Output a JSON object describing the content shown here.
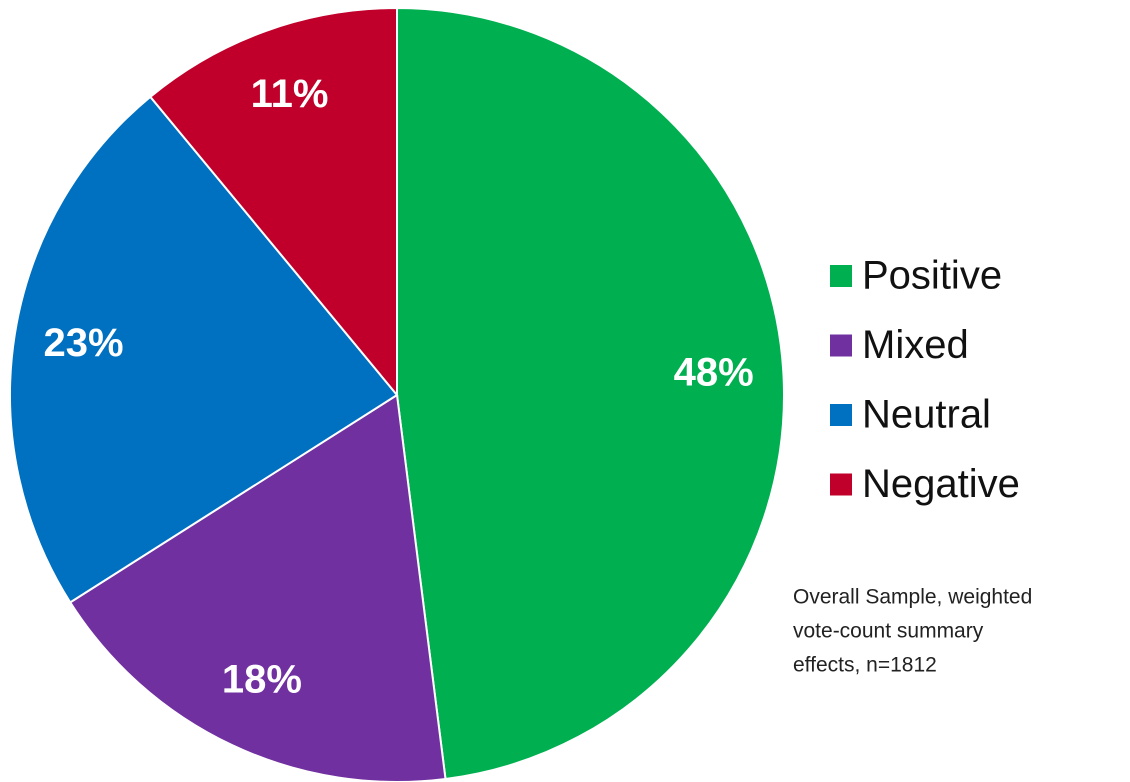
{
  "chart_data": {
    "type": "pie",
    "categories": [
      "Positive",
      "Mixed",
      "Neutral",
      "Negative"
    ],
    "values": [
      48,
      18,
      23,
      11
    ],
    "value_labels": [
      "48%",
      "18%",
      "23%",
      "11%"
    ],
    "colors": [
      "#00b050",
      "#7030a0",
      "#0070c0",
      "#c0002a"
    ],
    "annotation": [
      "Overall Sample, weighted",
      "vote-count summary",
      "effects, n=1812"
    ],
    "legend": "right"
  }
}
